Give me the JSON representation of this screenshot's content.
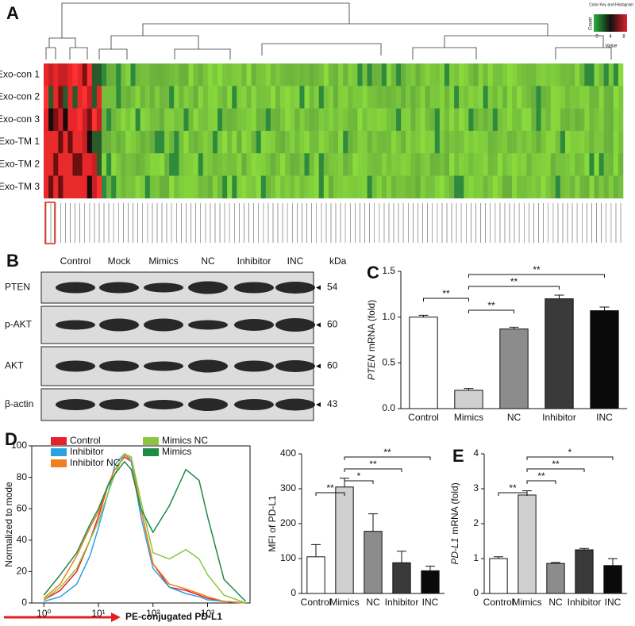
{
  "heatmap": {
    "label": "A",
    "rows": [
      "Exo-con 1",
      "Exo-con 2",
      "Exo-con 3",
      "Exo-TM 1",
      "Exo-TM 2",
      "Exo-TM 3"
    ],
    "color_key": {
      "title": "Color Key and Histogram",
      "y_label": "Count",
      "x_label": "Value",
      "ticks": [
        0,
        4,
        8
      ]
    }
  },
  "western_blot": {
    "label": "B",
    "lanes": [
      "Control",
      "Mock",
      "Mimics",
      "NC",
      "Inhibitor",
      "INC"
    ],
    "rows": [
      "PTEN",
      "p-AKT",
      "AKT",
      "β-actin"
    ],
    "unit": "kDa",
    "markers": [
      54,
      60,
      60,
      43
    ]
  },
  "chart_data": [
    {
      "type": "bar",
      "label": "C",
      "categories": [
        "Control",
        "Mimics",
        "NC",
        "Inhibitor",
        "INC"
      ],
      "values": [
        1.0,
        0.2,
        0.87,
        1.2,
        1.07
      ],
      "errors": [
        0.02,
        0.02,
        0.02,
        0.04,
        0.04
      ],
      "colors": [
        "#ffffff",
        "#d0d0d0",
        "#8c8c8c",
        "#3a3a3a",
        "#0a0a0a"
      ],
      "y_label_parts": [
        {
          "text": "PTEN",
          "italic": true
        },
        {
          "text": "mRNA (fold)"
        }
      ],
      "ylim": [
        0,
        1.5
      ],
      "yticks": [
        {
          "value": 0,
          "label": "0.0"
        },
        {
          "value": 0.5,
          "label": "0.5"
        },
        {
          "value": 1,
          "label": "1.0"
        },
        {
          "value": 1.5,
          "label": "1.5"
        }
      ],
      "annotations": [
        {
          "text": "**",
          "categories": [
            "Mimics",
            "INC"
          ]
        },
        {
          "text": "**",
          "categories": [
            "Mimics",
            "Inhibitor"
          ]
        },
        {
          "text": "**",
          "categories": [
            "Control",
            "Mimics"
          ]
        },
        {
          "text": "**",
          "categories": [
            "Mimics",
            "NC"
          ]
        }
      ]
    },
    {
      "type": "line",
      "label": "D",
      "log_x": true,
      "x": [
        1,
        2,
        4,
        7,
        10,
        15,
        20,
        30,
        40,
        60,
        100,
        200,
        400,
        700,
        1000,
        2000,
        5000
      ],
      "xlim": [
        0.6,
        6000
      ],
      "xticks": [
        {
          "value": 1,
          "label": "10⁰"
        },
        {
          "value": 10,
          "label": "10¹"
        },
        {
          "value": 100,
          "label": "10²"
        },
        {
          "value": 1000,
          "label": "10³"
        }
      ],
      "ylim": [
        0,
        100
      ],
      "yticks": [
        0,
        20,
        40,
        60,
        80,
        100
      ],
      "y_label": "Normalized to mode",
      "x_label": "PE-conjugated PD-L1",
      "series": [
        {
          "name": "Control",
          "color": "#e8202a",
          "values": [
            2,
            8,
            20,
            40,
            55,
            75,
            85,
            93,
            90,
            60,
            25,
            10,
            8,
            5,
            3,
            1,
            0
          ]
        },
        {
          "name": "Inhibitor",
          "color": "#2aa3e0",
          "values": [
            1,
            4,
            12,
            30,
            48,
            70,
            88,
            95,
            90,
            55,
            22,
            10,
            6,
            4,
            2,
            1,
            0
          ]
        },
        {
          "name": "Inhibitor NC",
          "color": "#f07f1e",
          "values": [
            3,
            12,
            30,
            48,
            58,
            75,
            85,
            94,
            92,
            60,
            25,
            12,
            9,
            6,
            4,
            1,
            0
          ]
        },
        {
          "name": "Mimics NC",
          "color": "#8cc63f",
          "values": [
            2,
            10,
            22,
            40,
            52,
            70,
            82,
            95,
            93,
            65,
            32,
            28,
            34,
            28,
            18,
            5,
            0
          ]
        },
        {
          "name": "Mimics",
          "color": "#1e8a44",
          "values": [
            5,
            18,
            32,
            50,
            60,
            75,
            82,
            90,
            85,
            60,
            45,
            62,
            85,
            78,
            55,
            15,
            1
          ]
        }
      ]
    },
    {
      "type": "bar",
      "categories": [
        "Control",
        "Mimics",
        "NC",
        "Inhibitor",
        "INC"
      ],
      "values": [
        105,
        305,
        178,
        88,
        65
      ],
      "errors": [
        35,
        25,
        50,
        33,
        13
      ],
      "colors": [
        "#ffffff",
        "#d0d0d0",
        "#8c8c8c",
        "#3a3a3a",
        "#0a0a0a"
      ],
      "y_label_parts": [
        {
          "text": "MFI of PD-L1"
        }
      ],
      "ylim": [
        0,
        400
      ],
      "yticks": [
        0,
        100,
        200,
        300,
        400
      ],
      "annotations": [
        {
          "text": "**",
          "categories": [
            "Mimics",
            "INC"
          ]
        },
        {
          "text": "**",
          "categories": [
            "Mimics",
            "Inhibitor"
          ]
        },
        {
          "text": "*",
          "categories": [
            "Mimics",
            "NC"
          ]
        },
        {
          "text": "**",
          "categories": [
            "Control",
            "Mimics"
          ]
        }
      ]
    },
    {
      "type": "bar",
      "label": "E",
      "categories": [
        "Control",
        "Mimics",
        "NC",
        "Inhibitor",
        "INC"
      ],
      "values": [
        1.0,
        2.82,
        0.86,
        1.25,
        0.8
      ],
      "errors": [
        0.05,
        0.12,
        0.03,
        0.04,
        0.2
      ],
      "colors": [
        "#ffffff",
        "#d0d0d0",
        "#8c8c8c",
        "#3a3a3a",
        "#0a0a0a"
      ],
      "y_label_parts": [
        {
          "text": "PD-L1",
          "italic": true
        },
        {
          "text": "mRNA (fold)"
        }
      ],
      "ylim": [
        0,
        4
      ],
      "yticks": [
        0,
        1,
        2,
        3,
        4
      ],
      "annotations": [
        {
          "text": "*",
          "categories": [
            "Mimics",
            "INC"
          ]
        },
        {
          "text": "**",
          "categories": [
            "Mimics",
            "Inhibitor"
          ]
        },
        {
          "text": "**",
          "categories": [
            "Mimics",
            "NC"
          ]
        },
        {
          "text": "**",
          "categories": [
            "Control",
            "Mimics"
          ]
        }
      ]
    }
  ]
}
